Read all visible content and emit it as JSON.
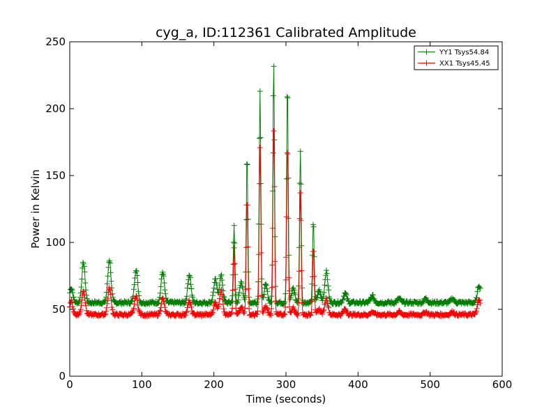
{
  "chart_data": {
    "type": "line",
    "title": "cyg_a, ID:112361 Calibrated Amplitude",
    "xlabel": "Time (seconds)",
    "ylabel": "Power in Kelvin",
    "xlim": [
      0,
      600
    ],
    "ylim": [
      0,
      250
    ],
    "xticks": [
      "0",
      "100",
      "200",
      "300",
      "400",
      "500",
      "600"
    ],
    "yticks": [
      "0",
      "50",
      "100",
      "150",
      "200",
      "250"
    ],
    "grid": false,
    "legend_position": "top-right",
    "marker": "+",
    "series": [
      {
        "name": "YY1 Tsys54.84",
        "color": "#008000",
        "baseline": 55,
        "noise": 1.2,
        "x_start": 0,
        "x_end": 570,
        "peaks": [
          {
            "x": 2,
            "y": 66
          },
          {
            "x": 19,
            "y": 85
          },
          {
            "x": 55,
            "y": 87
          },
          {
            "x": 92,
            "y": 80
          },
          {
            "x": 129,
            "y": 78
          },
          {
            "x": 166,
            "y": 76
          },
          {
            "x": 202,
            "y": 72
          },
          {
            "x": 210,
            "y": 75
          },
          {
            "x": 228,
            "y": 112
          },
          {
            "x": 238,
            "y": 70
          },
          {
            "x": 246,
            "y": 164
          },
          {
            "x": 264,
            "y": 214
          },
          {
            "x": 272,
            "y": 68
          },
          {
            "x": 283,
            "y": 234
          },
          {
            "x": 302,
            "y": 218
          },
          {
            "x": 310,
            "y": 66
          },
          {
            "x": 320,
            "y": 169
          },
          {
            "x": 338,
            "y": 116
          },
          {
            "x": 346,
            "y": 64
          },
          {
            "x": 356,
            "y": 78
          },
          {
            "x": 382,
            "y": 62
          },
          {
            "x": 420,
            "y": 60
          },
          {
            "x": 457,
            "y": 58
          },
          {
            "x": 494,
            "y": 58
          },
          {
            "x": 531,
            "y": 58
          },
          {
            "x": 568,
            "y": 68
          }
        ]
      },
      {
        "name": "XX1 Tsys45.45",
        "color": "#ff0000",
        "baseline": 46,
        "noise": 1.0,
        "x_start": 0,
        "x_end": 570,
        "peaks": [
          {
            "x": 2,
            "y": 56
          },
          {
            "x": 19,
            "y": 64
          },
          {
            "x": 55,
            "y": 66
          },
          {
            "x": 92,
            "y": 60
          },
          {
            "x": 129,
            "y": 58
          },
          {
            "x": 166,
            "y": 56
          },
          {
            "x": 202,
            "y": 55
          },
          {
            "x": 210,
            "y": 64
          },
          {
            "x": 228,
            "y": 95
          },
          {
            "x": 238,
            "y": 52
          },
          {
            "x": 246,
            "y": 134
          },
          {
            "x": 264,
            "y": 171
          },
          {
            "x": 272,
            "y": 52
          },
          {
            "x": 283,
            "y": 186
          },
          {
            "x": 302,
            "y": 174
          },
          {
            "x": 310,
            "y": 51
          },
          {
            "x": 320,
            "y": 137
          },
          {
            "x": 338,
            "y": 97
          },
          {
            "x": 346,
            "y": 50
          },
          {
            "x": 356,
            "y": 58
          },
          {
            "x": 382,
            "y": 50
          },
          {
            "x": 420,
            "y": 48
          },
          {
            "x": 457,
            "y": 48
          },
          {
            "x": 494,
            "y": 48
          },
          {
            "x": 531,
            "y": 48
          },
          {
            "x": 568,
            "y": 58
          }
        ]
      }
    ]
  }
}
